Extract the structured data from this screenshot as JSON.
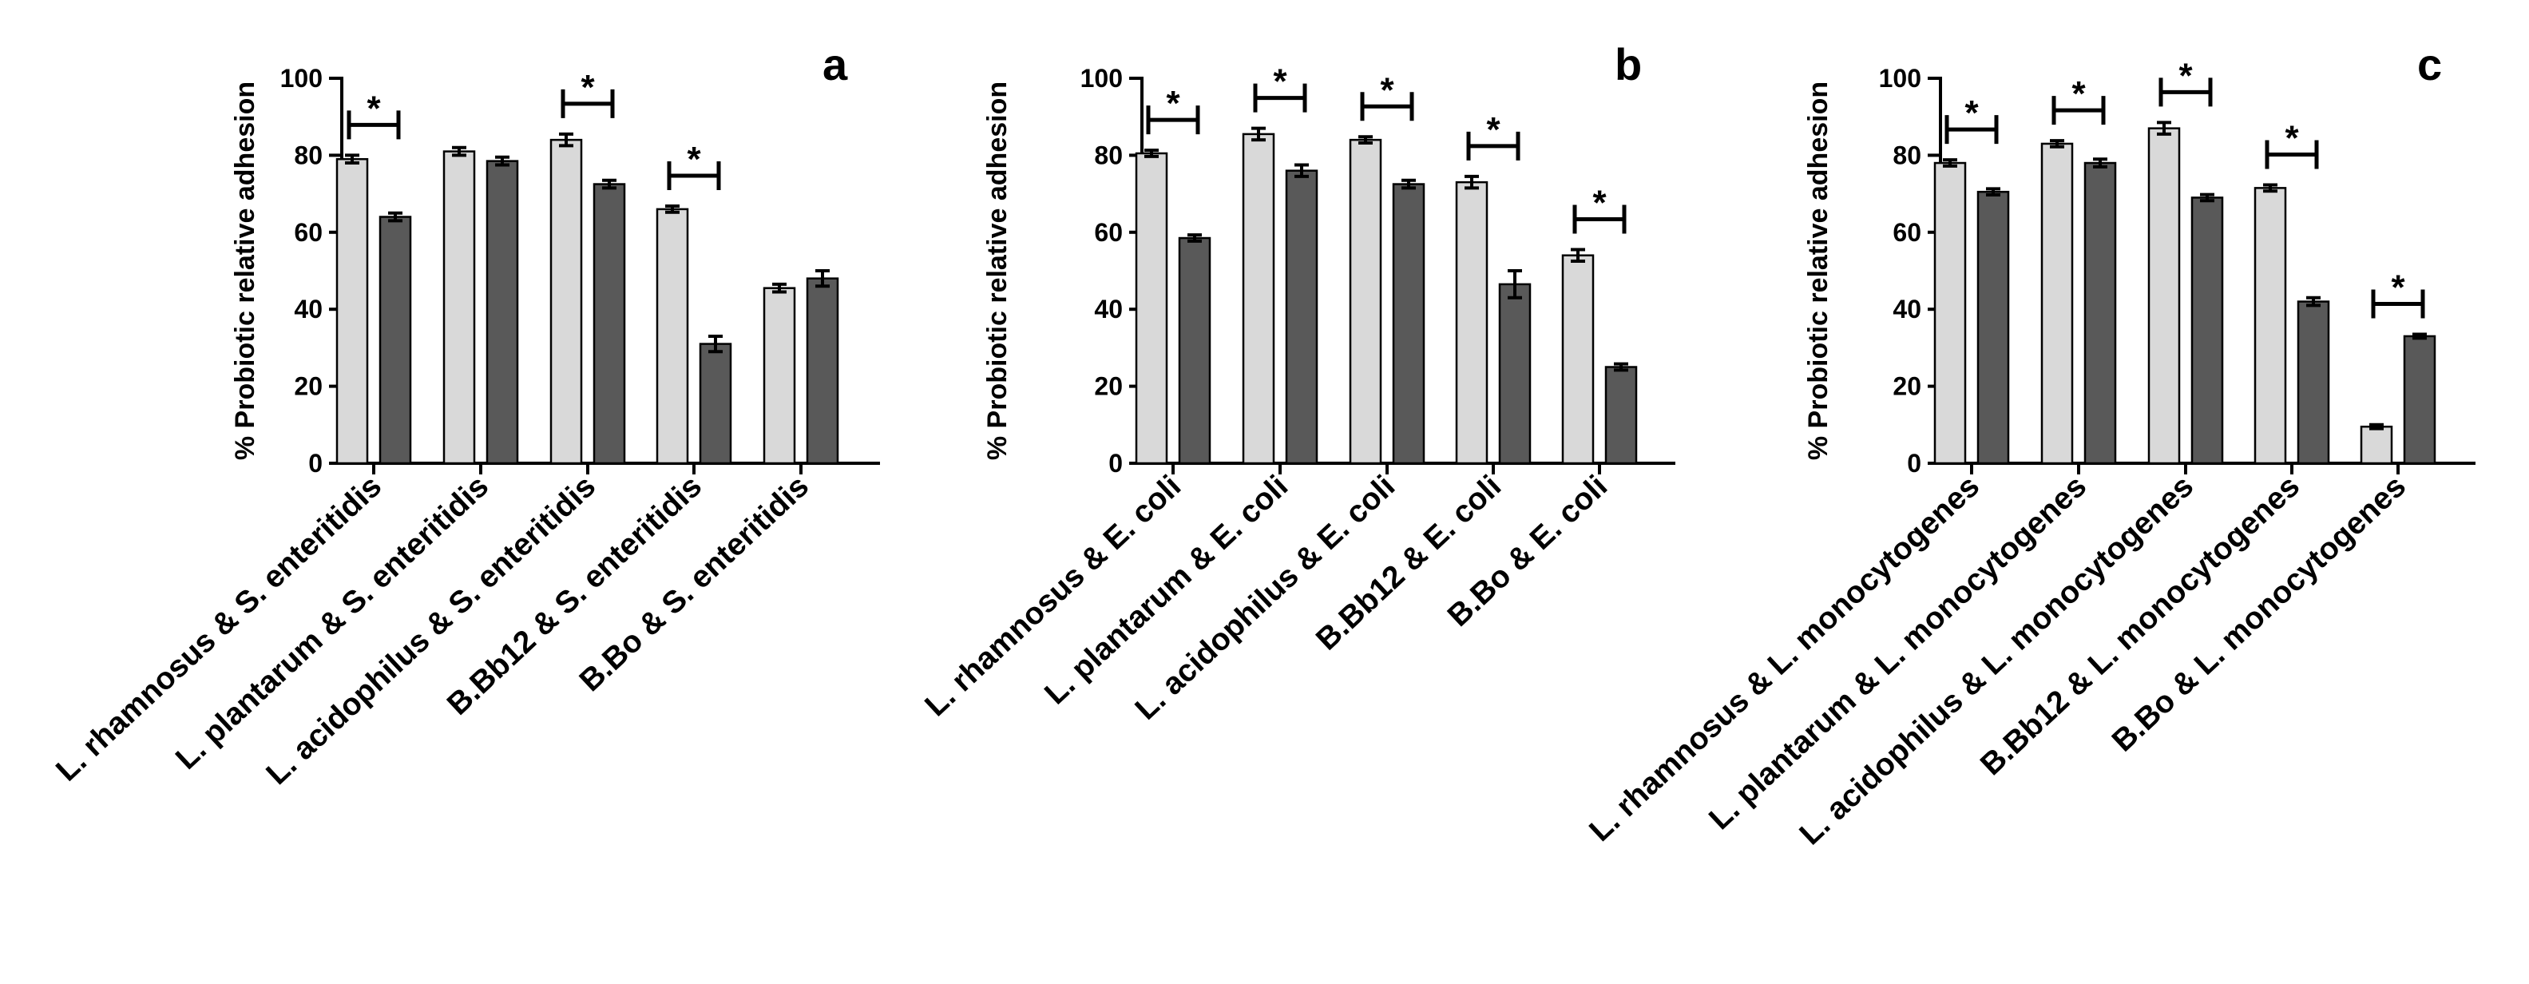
{
  "colors": {
    "series_light": "#d9d9d9",
    "series_dark": "#595959",
    "axis": "#000000"
  },
  "chart_data": [
    {
      "panel": "a",
      "type": "bar",
      "ylabel": "% Probiotic relative adhesion",
      "ylim": [
        0,
        100
      ],
      "yticks": [
        0,
        20,
        40,
        60,
        80,
        100
      ],
      "categories": [
        "L. rhamnosus & S. enteritidis",
        "L. plantarum & S. enteritidis",
        "L. acidophilus & S. enteritidis",
        "B.Bb12 & S. enteritidis",
        "B.Bo & S. enteritidis"
      ],
      "series": [
        {
          "name": "light",
          "values": [
            79,
            81,
            84,
            66,
            45.5
          ],
          "errors": [
            1,
            1,
            1.5,
            0.8,
            1
          ]
        },
        {
          "name": "dark",
          "values": [
            64,
            78.5,
            72.5,
            31,
            48
          ],
          "errors": [
            1,
            1,
            1,
            2,
            2
          ]
        }
      ],
      "significance": [
        true,
        false,
        true,
        true,
        false
      ],
      "sig_symbol": "*"
    },
    {
      "panel": "b",
      "type": "bar",
      "ylabel": "% Probiotic relative adhesion",
      "ylim": [
        0,
        100
      ],
      "yticks": [
        0,
        20,
        40,
        60,
        80,
        100
      ],
      "categories": [
        "L. rhamnosus & E. coli",
        "L. plantarum & E. coli",
        "L. acidophilus & E. coli",
        "B.Bb12 & E. coli",
        "B.Bo & E. coli"
      ],
      "series": [
        {
          "name": "light",
          "values": [
            80.5,
            85.5,
            84,
            73,
            54
          ],
          "errors": [
            0.8,
            1.5,
            0.8,
            1.5,
            1.5
          ]
        },
        {
          "name": "dark",
          "values": [
            58.5,
            76,
            72.5,
            46.5,
            25
          ],
          "errors": [
            0.8,
            1.5,
            1,
            3.5,
            0.8
          ]
        }
      ],
      "significance": [
        true,
        true,
        true,
        true,
        true
      ],
      "sig_symbol": "*"
    },
    {
      "panel": "c",
      "type": "bar",
      "ylabel": "% Probiotic relative adhesion",
      "ylim": [
        0,
        100
      ],
      "yticks": [
        0,
        20,
        40,
        60,
        80,
        100
      ],
      "categories": [
        "L. rhamnosus & L. monocytogenes",
        "L. plantarum & L. monocytogenes",
        "L. acidophilus & L. monocytogenes",
        "B.Bb12 & L. monocytogenes",
        "B.Bo & L. monocytogenes"
      ],
      "series": [
        {
          "name": "light",
          "values": [
            78,
            83,
            87,
            71.5,
            9.5
          ],
          "errors": [
            0.8,
            0.8,
            1.5,
            0.8,
            0.5
          ]
        },
        {
          "name": "dark",
          "values": [
            70.5,
            78,
            69,
            42,
            33
          ],
          "errors": [
            0.8,
            1,
            0.8,
            1,
            0.5
          ]
        }
      ],
      "significance": [
        true,
        true,
        true,
        true,
        true
      ],
      "sig_symbol": "*"
    }
  ]
}
